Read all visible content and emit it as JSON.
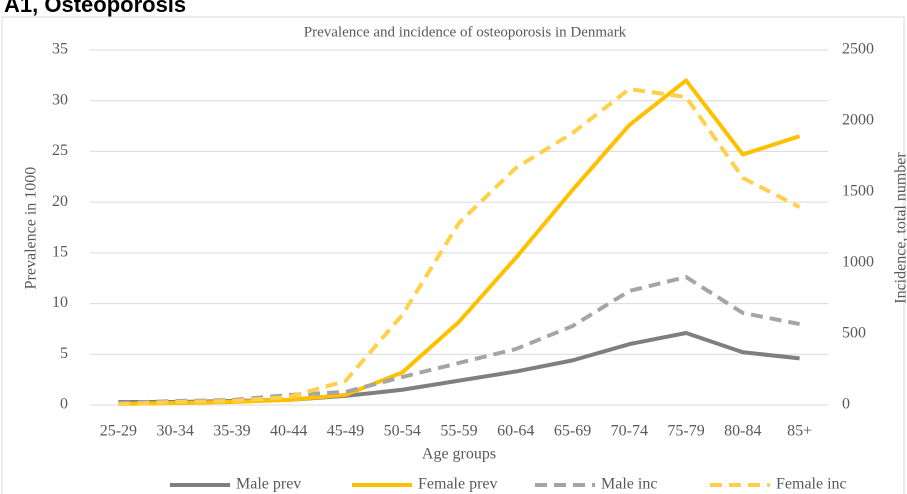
{
  "header": "A1, Osteoporosis",
  "chart_data": {
    "type": "line",
    "title": "Prevalence and incidence of osteoporosis in Denmark",
    "x_label": "Age groups",
    "y_label": "Prevalence in 1000",
    "y2_label": "Incidence, total number",
    "categories": [
      "25-29",
      "30-34",
      "35-39",
      "40-44",
      "45-49",
      "50-54",
      "55-59",
      "60-64",
      "65-69",
      "70-74",
      "75-79",
      "80-84",
      "85+"
    ],
    "ylim": [
      0,
      35
    ],
    "yticks": [
      0,
      5,
      10,
      15,
      20,
      25,
      30,
      35
    ],
    "y2lim": [
      0,
      2500
    ],
    "y2ticks": [
      0,
      500,
      1000,
      1500,
      2000,
      2500
    ],
    "grid": true,
    "legend": "bottom",
    "series": [
      {
        "name": "Male prev",
        "color": "#7f7f7f",
        "dashed": false,
        "values": [
          0.3,
          0.3,
          0.4,
          0.5,
          0.9,
          1.5,
          2.4,
          3.3,
          4.4,
          6.0,
          7.1,
          5.2,
          4.6
        ]
      },
      {
        "name": "Female prev",
        "color": "#ffc000",
        "dashed": false,
        "values": [
          0.1,
          0.2,
          0.3,
          0.5,
          1.0,
          3.2,
          8.2,
          14.5,
          21.2,
          27.6,
          32.0,
          24.7,
          26.5
        ]
      },
      {
        "name": "Male inc",
        "color": "#a5a5a5",
        "dashed": true,
        "axis": "y2",
        "values": [
          14,
          28,
          35,
          70,
          92,
          197,
          296,
          394,
          556,
          803,
          901,
          648,
          570
        ]
      },
      {
        "name": "Female inc",
        "color": "#ffd04a",
        "dashed": true,
        "axis": "y2",
        "values": [
          5,
          21,
          28,
          56,
          169,
          634,
          1282,
          1669,
          1915,
          2225,
          2169,
          1599,
          1394
        ]
      }
    ]
  }
}
